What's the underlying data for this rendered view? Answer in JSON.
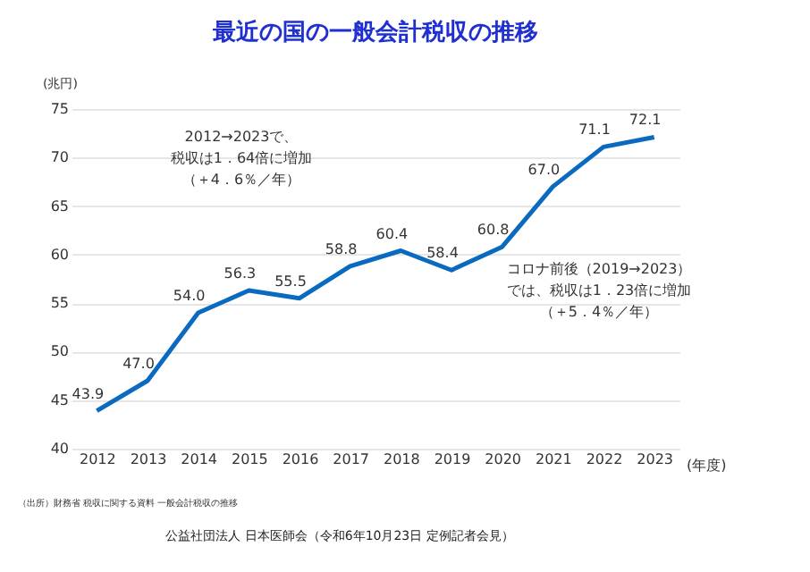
{
  "chart_data": {
    "type": "line",
    "title": "最近の国の一般会計税収の推移",
    "categories": [
      "2012",
      "2013",
      "2014",
      "2015",
      "2016",
      "2017",
      "2018",
      "2019",
      "2020",
      "2021",
      "2022",
      "2023"
    ],
    "series": [
      {
        "color": "#0a6ac0",
        "values": [
          43.9,
          47.0,
          54.0,
          56.3,
          55.5,
          58.8,
          60.4,
          58.4,
          60.8,
          67.0,
          71.1,
          72.1
        ]
      }
    ],
    "ylim": [
      40,
      75
    ],
    "yticks": [
      40,
      45,
      50,
      55,
      60,
      65,
      70,
      75
    ],
    "value_labels": [
      "43.9",
      "47.0",
      "54.0",
      "56.3",
      "55.5",
      "58.8",
      "60.4",
      "58.4",
      "60.8",
      "67.0",
      "71.1",
      "72.1"
    ],
    "ylabel": "(兆円)",
    "xlabel": "(年度)",
    "grid": "y",
    "marker": "none",
    "line_style": "solid",
    "annotations": [
      "2012→2023で、",
      "税収は1．64倍に増加",
      "（＋4．6％／年）",
      "コロナ前後（2019→2023）",
      "では、税収は1．23倍に増加",
      "（＋5．4％／年）",
      "（出所）財務省 税収に関する資料 一般会計税収の推移",
      "公益社団法人 日本医師会（令和6年10月23日 定例記者会見）"
    ]
  }
}
